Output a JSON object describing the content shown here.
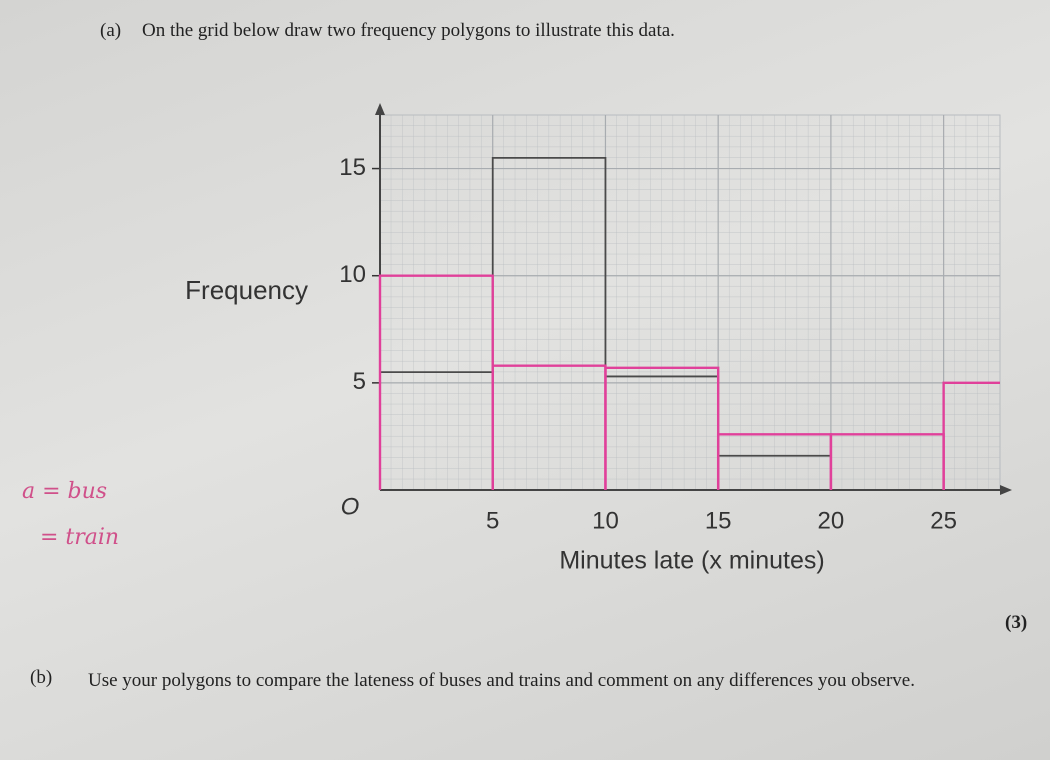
{
  "part_a": {
    "label": "(a)",
    "text": "On the grid below draw two frequency polygons to illustrate this data.",
    "marks": "(3)"
  },
  "chart_data": {
    "type": "step",
    "y_label": "Frequency",
    "x_label": "Minutes late (x minutes)",
    "origin_label": "O",
    "x": [
      0,
      5,
      10,
      15,
      20,
      25
    ],
    "series": [
      {
        "color": "#4a4a4a",
        "values": [
          5.5,
          15.5,
          5.3,
          1.6,
          null,
          null
        ]
      },
      {
        "color": "#e0409a",
        "values": [
          10,
          5.8,
          5.7,
          2.6,
          2.6,
          5
        ]
      }
    ],
    "xlim": [
      0,
      27.5
    ],
    "ylim": [
      0,
      17.5
    ],
    "xticks": [
      5,
      10,
      15,
      20,
      25
    ],
    "yticks": [
      5,
      10,
      15
    ],
    "grid": true,
    "annotations": [
      "a = bus",
      "= train"
    ]
  },
  "part_b": {
    "label": "(b)",
    "text": "Use your polygons to compare the lateness of buses and trains and comment on any differences you observe."
  }
}
